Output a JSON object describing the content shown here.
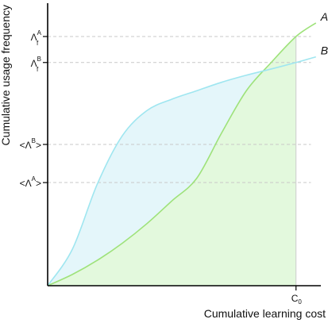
{
  "chart_data": {
    "type": "area",
    "title": "",
    "xlabel": "Cumulative learning cost",
    "ylabel": "Cumulative usage frequency",
    "xlim": [
      0,
      1.1
    ],
    "ylim": [
      0,
      1
    ],
    "grid": false,
    "x_ticks": [
      {
        "value": 1.0,
        "label": "C",
        "sub": "0"
      }
    ],
    "y_ticks": [
      {
        "value": 0.882,
        "label": "Λ",
        "sup": "A",
        "sub": "f"
      },
      {
        "value": 0.79,
        "label": "Λ",
        "sup": "B",
        "sub": "f"
      },
      {
        "value": 0.5,
        "label": "<Λ",
        "sup": "B",
        "post": ">"
      },
      {
        "value": 0.365,
        "label": "<Λ",
        "sup": "A",
        "post": ">"
      }
    ],
    "series": [
      {
        "name": "A",
        "color": "#9ee27a",
        "fill": "#e3f9dd",
        "shaded_to_x": 1.0,
        "points": [
          [
            0.0,
            0.0
          ],
          [
            0.1,
            0.04
          ],
          [
            0.2,
            0.09
          ],
          [
            0.3,
            0.15
          ],
          [
            0.4,
            0.22
          ],
          [
            0.5,
            0.3
          ],
          [
            0.6,
            0.38
          ],
          [
            0.7,
            0.54
          ],
          [
            0.8,
            0.69
          ],
          [
            0.9,
            0.79
          ],
          [
            1.0,
            0.882
          ],
          [
            1.08,
            0.93
          ]
        ]
      },
      {
        "name": "B",
        "color": "#9fe6f0",
        "fill": "#e4f6fa",
        "shaded_to_x": 1.0,
        "points": [
          [
            0.0,
            0.0
          ],
          [
            0.1,
            0.13
          ],
          [
            0.2,
            0.36
          ],
          [
            0.3,
            0.53
          ],
          [
            0.4,
            0.62
          ],
          [
            0.5,
            0.66
          ],
          [
            0.6,
            0.69
          ],
          [
            0.7,
            0.72
          ],
          [
            0.8,
            0.745
          ],
          [
            0.9,
            0.767
          ],
          [
            1.0,
            0.79
          ],
          [
            1.08,
            0.81
          ]
        ]
      }
    ]
  }
}
